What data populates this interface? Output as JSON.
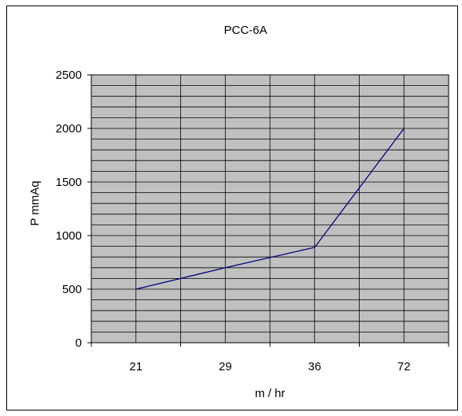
{
  "chart_data": {
    "type": "line",
    "title": "PCC-6A",
    "xlabel": "m / hr",
    "ylabel": "P mmAq",
    "categories": [
      "21",
      "29",
      "36",
      "72"
    ],
    "series": [
      {
        "values": [
          500,
          700,
          890,
          2000
        ]
      }
    ],
    "ylim": [
      0,
      2500
    ],
    "yticks": [
      0,
      500,
      1000,
      1500,
      2000,
      2500
    ],
    "grid": true,
    "plot_background": "#c0c0c0",
    "line_color": "#000080"
  }
}
